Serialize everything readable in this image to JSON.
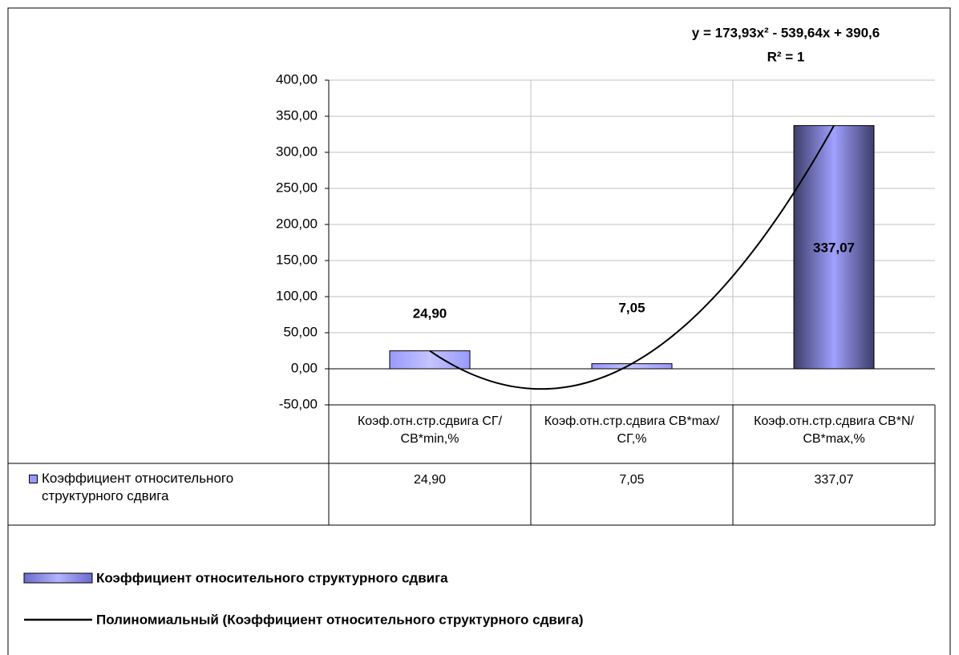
{
  "chart_data": {
    "type": "bar",
    "categories": [
      "Коэф.отн.стр.сдвига СГ/СВ*min,%",
      "Коэф.отн.стр.сдвига СВ*max/СГ,%",
      "Коэф.отн.стр.сдвига СВ*N/СВ*max,%"
    ],
    "series": [
      {
        "name": "Коэффициент относительного структурного сдвига",
        "color": "#9999ff",
        "colors": [
          "#9999ff",
          "#9999ff",
          "#3d3d6b"
        ],
        "values": [
          24.9,
          7.05,
          337.07
        ],
        "value_labels": [
          "24,90",
          "7,05",
          "337,07"
        ]
      }
    ],
    "trendline": {
      "name": "Полиномиальный (Коэффициент относительного структурного сдвига)",
      "equation": "y = 173,93x² - 539,64x + 390,6",
      "r_squared_label": "R² = 1",
      "coefficients": [
        173.93,
        -539.64,
        390.6
      ],
      "color": "#000000"
    },
    "ylim": [
      -50,
      400
    ],
    "yticks": [
      {
        "value": -50,
        "label": "-50,00"
      },
      {
        "value": 0,
        "label": "0,00"
      },
      {
        "value": 50,
        "label": "50,00"
      },
      {
        "value": 100,
        "label": "100,00"
      },
      {
        "value": 150,
        "label": "150,00"
      },
      {
        "value": 200,
        "label": "200,00"
      },
      {
        "value": 250,
        "label": "250,00"
      },
      {
        "value": 300,
        "label": "300,00"
      },
      {
        "value": 350,
        "label": "350,00"
      },
      {
        "value": 400,
        "label": "400,00"
      }
    ],
    "grid": true,
    "data_table": true
  }
}
